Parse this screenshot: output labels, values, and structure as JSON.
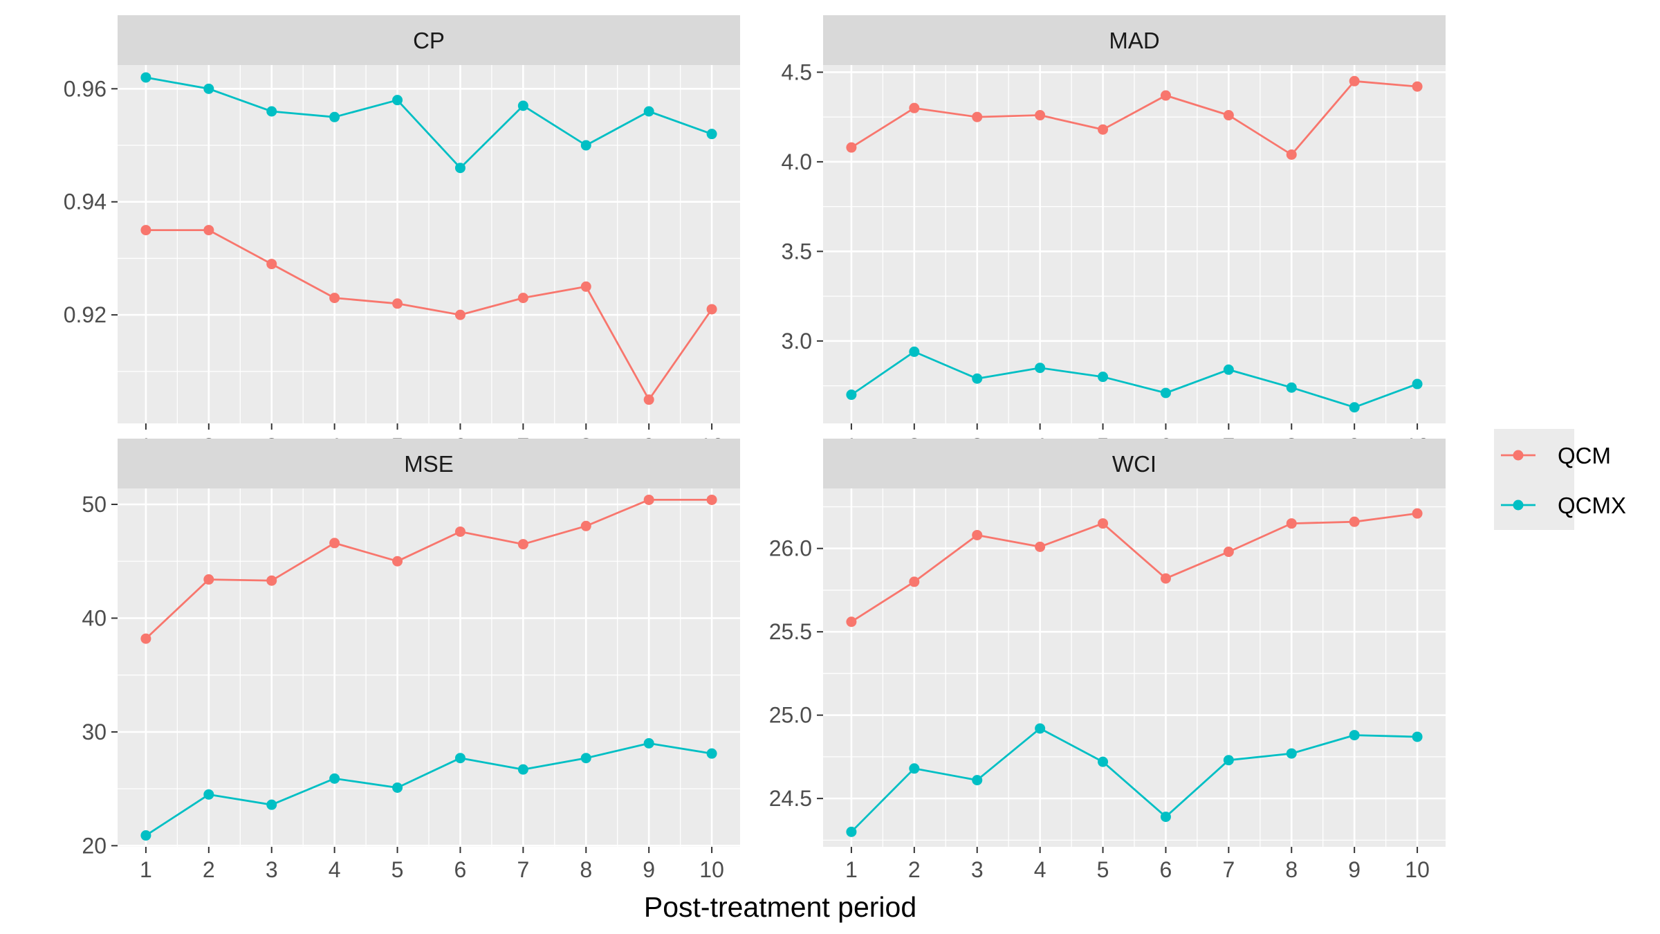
{
  "figure": {
    "xlabel": "Post-treatment period"
  },
  "legend": {
    "placement": "right",
    "entries": [
      {
        "name": "QCM",
        "color": "#F8766D"
      },
      {
        "name": "QCMX",
        "color": "#00BFC4"
      }
    ]
  },
  "chart_data": [
    {
      "type": "line",
      "title": "CP",
      "x": [
        1,
        2,
        3,
        4,
        5,
        6,
        7,
        8,
        9,
        10
      ],
      "xticks": [
        "1",
        "2",
        "3",
        "4",
        "5",
        "6",
        "7",
        "8",
        "9",
        "10"
      ],
      "xlim": [
        0.55,
        10.45
      ],
      "ylim": [
        0.9008,
        0.9642
      ],
      "yticks": [
        0.92,
        0.94,
        0.96
      ],
      "ytick_labels": [
        "0.92",
        "0.94",
        "0.96"
      ],
      "grid": true,
      "series": [
        {
          "name": "QCM",
          "color": "#F8766D",
          "values": [
            0.935,
            0.935,
            0.929,
            0.923,
            0.922,
            0.92,
            0.923,
            0.925,
            0.905,
            0.921
          ]
        },
        {
          "name": "QCMX",
          "color": "#00BFC4",
          "values": [
            0.962,
            0.96,
            0.956,
            0.955,
            0.958,
            0.946,
            0.957,
            0.95,
            0.956,
            0.952
          ]
        }
      ]
    },
    {
      "type": "line",
      "title": "MAD",
      "x": [
        1,
        2,
        3,
        4,
        5,
        6,
        7,
        8,
        9,
        10
      ],
      "xticks": [
        "1",
        "2",
        "3",
        "4",
        "5",
        "6",
        "7",
        "8",
        "9",
        "10"
      ],
      "xlim": [
        0.55,
        10.45
      ],
      "ylim": [
        2.54,
        4.54
      ],
      "yticks": [
        3.0,
        3.5,
        4.0,
        4.5
      ],
      "ytick_labels": [
        "3.0",
        "3.5",
        "4.0",
        "4.5"
      ],
      "grid": true,
      "series": [
        {
          "name": "QCM",
          "color": "#F8766D",
          "values": [
            4.08,
            4.3,
            4.25,
            4.26,
            4.18,
            4.37,
            4.26,
            4.04,
            4.45,
            4.42
          ]
        },
        {
          "name": "QCMX",
          "color": "#00BFC4",
          "values": [
            2.7,
            2.94,
            2.79,
            2.85,
            2.8,
            2.71,
            2.84,
            2.74,
            2.63,
            2.76
          ]
        }
      ]
    },
    {
      "type": "line",
      "title": "MSE",
      "x": [
        1,
        2,
        3,
        4,
        5,
        6,
        7,
        8,
        9,
        10
      ],
      "xticks": [
        "1",
        "2",
        "3",
        "4",
        "5",
        "6",
        "7",
        "8",
        "9",
        "10"
      ],
      "xlim": [
        0.55,
        10.45
      ],
      "ylim": [
        19.9,
        51.4
      ],
      "yticks": [
        20,
        30,
        40,
        50
      ],
      "ytick_labels": [
        "20",
        "30",
        "40",
        "50"
      ],
      "grid": true,
      "series": [
        {
          "name": "QCM",
          "color": "#F8766D",
          "values": [
            38.2,
            43.4,
            43.3,
            46.6,
            45.0,
            47.6,
            46.5,
            48.1,
            50.4,
            50.4
          ]
        },
        {
          "name": "QCMX",
          "color": "#00BFC4",
          "values": [
            20.9,
            24.5,
            23.6,
            25.9,
            25.1,
            27.7,
            26.7,
            27.7,
            29.0,
            28.1
          ]
        }
      ]
    },
    {
      "type": "line",
      "title": "WCI",
      "x": [
        1,
        2,
        3,
        4,
        5,
        6,
        7,
        8,
        9,
        10
      ],
      "xticks": [
        "1",
        "2",
        "3",
        "4",
        "5",
        "6",
        "7",
        "8",
        "9",
        "10"
      ],
      "xlim": [
        0.55,
        10.45
      ],
      "ylim": [
        24.21,
        26.36
      ],
      "yticks": [
        24.5,
        25.0,
        25.5,
        26.0
      ],
      "ytick_labels": [
        "24.5",
        "25.0",
        "25.5",
        "26.0"
      ],
      "grid": true,
      "series": [
        {
          "name": "QCM",
          "color": "#F8766D",
          "values": [
            25.56,
            25.8,
            26.08,
            26.01,
            26.15,
            25.82,
            25.98,
            26.15,
            26.16,
            26.21
          ]
        },
        {
          "name": "QCMX",
          "color": "#00BFC4",
          "values": [
            24.3,
            24.68,
            24.61,
            24.92,
            24.72,
            24.39,
            24.73,
            24.77,
            24.88,
            24.87
          ]
        }
      ]
    }
  ]
}
